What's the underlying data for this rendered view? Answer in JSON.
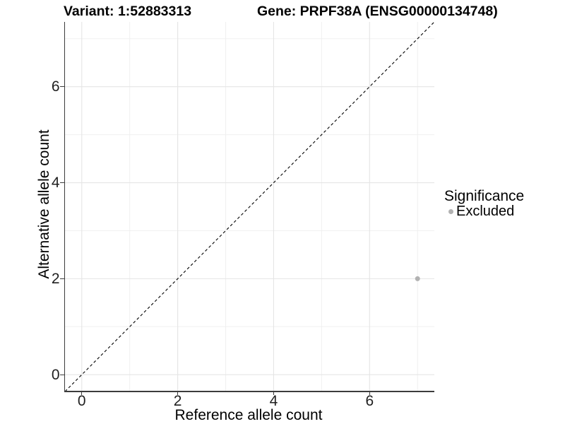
{
  "chart_data": {
    "type": "scatter",
    "title_left": "Variant: 1:52883313",
    "title_right": "Gene: PRPF38A (ENSG00000134748)",
    "xlabel": "Reference allele count",
    "ylabel": "Alternative allele count",
    "xlim": [
      -0.35,
      7.35
    ],
    "ylim": [
      -0.35,
      7.35
    ],
    "x_ticks": [
      0,
      2,
      4,
      6
    ],
    "y_ticks": [
      0,
      2,
      4,
      6
    ],
    "x_minor_gridlines": [
      1,
      3,
      5,
      7
    ],
    "y_minor_gridlines": [
      1,
      3,
      5,
      7
    ],
    "grid": true,
    "identity_line": {
      "style": "dashed",
      "from": [
        -0.35,
        -0.35
      ],
      "to": [
        7.35,
        7.35
      ],
      "color": "#000000"
    },
    "series": [
      {
        "name": "Excluded",
        "color": "#b2b2b2",
        "points": [
          {
            "x": 7,
            "y": 2
          }
        ]
      }
    ],
    "legend": {
      "title": "Significance",
      "position": "right",
      "entries": [
        {
          "label": "Excluded",
          "color": "#b2b2b2",
          "marker": "circle"
        }
      ]
    },
    "colors": {
      "background": "#ffffff",
      "axis_line": "#3c3c3c",
      "tick_label": "#1f1f1f",
      "grid_major": "#e5e5e5",
      "grid_minor": "#f0f0f0"
    }
  }
}
